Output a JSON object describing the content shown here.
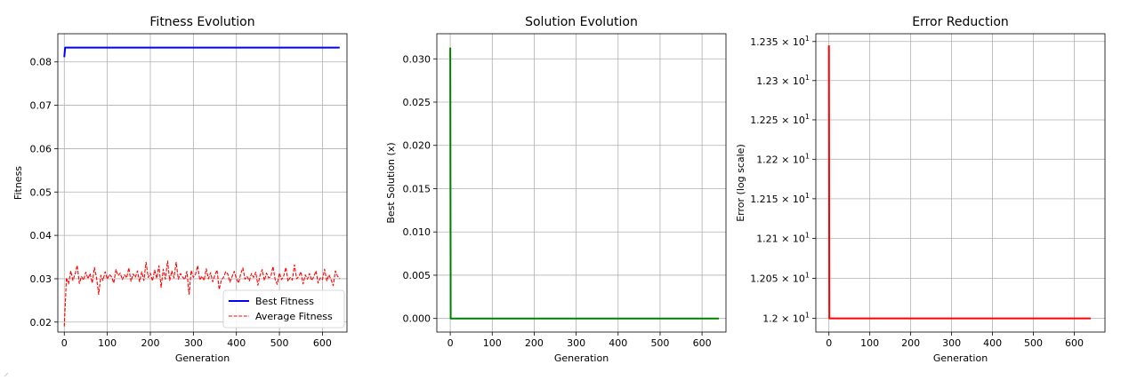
{
  "chart_data": [
    {
      "type": "line",
      "title": "Fitness Evolution",
      "xlabel": "Generation",
      "ylabel": "Fitness",
      "xlim": [
        -15,
        657
      ],
      "ylim": [
        0.0177,
        0.0865
      ],
      "xticks": [
        0,
        100,
        200,
        300,
        400,
        500,
        600
      ],
      "yticks": [
        0.02,
        0.03,
        0.04,
        0.05,
        0.06,
        0.07,
        0.08
      ],
      "ytick_labels": [
        "0.02",
        "0.03",
        "0.04",
        "0.05",
        "0.06",
        "0.07",
        "0.08"
      ],
      "grid": true,
      "legend": "lower-right",
      "series": [
        {
          "name": "Best Fitness",
          "color": "#0000ff",
          "style": "solid",
          "x": [
            0,
            2,
            640
          ],
          "y": [
            0.0811,
            0.0833,
            0.0833
          ]
        },
        {
          "name": "Average Fitness",
          "color": "#ff0000",
          "style": "dashed",
          "x_start": 0,
          "x_step": 5,
          "y": [
            0.019,
            0.0302,
            0.0288,
            0.0318,
            0.0296,
            0.031,
            0.0331,
            0.0289,
            0.0305,
            0.0297,
            0.0315,
            0.03,
            0.0312,
            0.029,
            0.0326,
            0.0302,
            0.0264,
            0.0308,
            0.0296,
            0.0316,
            0.0299,
            0.031,
            0.0304,
            0.029,
            0.0321,
            0.0307,
            0.0313,
            0.0298,
            0.0309,
            0.0302,
            0.0325,
            0.0294,
            0.0311,
            0.0303,
            0.0318,
            0.0293,
            0.0316,
            0.0296,
            0.0338,
            0.0303,
            0.0313,
            0.0295,
            0.032,
            0.0301,
            0.033,
            0.028,
            0.0322,
            0.0299,
            0.0341,
            0.0296,
            0.0318,
            0.0302,
            0.0338,
            0.0299,
            0.0312,
            0.0304,
            0.0298,
            0.0317,
            0.0264,
            0.0319,
            0.0303,
            0.031,
            0.033,
            0.0297,
            0.0306,
            0.0296,
            0.0323,
            0.03,
            0.0314,
            0.0293,
            0.0308,
            0.032,
            0.0275,
            0.0297,
            0.0303,
            0.0316,
            0.0311,
            0.0292,
            0.0305,
            0.0317,
            0.03,
            0.029,
            0.0311,
            0.0325,
            0.0299,
            0.0305,
            0.0295,
            0.0312,
            0.0303,
            0.0315,
            0.0285,
            0.0308,
            0.0321,
            0.0296,
            0.0313,
            0.0302,
            0.0305,
            0.0328,
            0.0299,
            0.0287,
            0.0313,
            0.0298,
            0.0306,
            0.0326,
            0.0294,
            0.0303,
            0.0297,
            0.0332,
            0.03,
            0.0305,
            0.0316,
            0.0288,
            0.0309,
            0.0299,
            0.0312,
            0.0296,
            0.0305,
            0.0318,
            0.029,
            0.0302,
            0.0298,
            0.0322,
            0.0295,
            0.0309,
            0.0298,
            0.0284,
            0.0318,
            0.0306,
            0.03
          ]
        }
      ]
    },
    {
      "type": "line",
      "title": "Solution Evolution",
      "xlabel": "Generation",
      "ylabel": "Best Solution (x)",
      "xlim": [
        -32,
        657
      ],
      "ylim": [
        -0.00157,
        0.0329
      ],
      "xticks": [
        0,
        100,
        200,
        300,
        400,
        500,
        600
      ],
      "yticks": [
        0.0,
        0.005,
        0.01,
        0.015,
        0.02,
        0.025,
        0.03
      ],
      "ytick_labels": [
        "0.000",
        "0.005",
        "0.010",
        "0.015",
        "0.020",
        "0.025",
        "0.030"
      ],
      "grid": true,
      "series": [
        {
          "color": "#008000",
          "style": "solid",
          "x": [
            0,
            1,
            640
          ],
          "y": [
            0.0313,
            0.0,
            0.0
          ]
        }
      ]
    },
    {
      "type": "line",
      "title": "Error Reduction",
      "xlabel": "Generation",
      "ylabel": "Error (log scale)",
      "yscale": "log",
      "xlim": [
        -32,
        675
      ],
      "ylim": [
        11.983,
        12.36
      ],
      "xticks": [
        0,
        100,
        200,
        300,
        400,
        500,
        600
      ],
      "yticks": [
        12.0,
        12.05,
        12.1,
        12.15,
        12.2,
        12.25,
        12.3,
        12.35
      ],
      "ytick_mantissas": [
        "1.2",
        "1.205",
        "1.21",
        "1.215",
        "1.22",
        "1.225",
        "1.23",
        "1.235"
      ],
      "ytick_base": "10",
      "ytick_exp": "1",
      "grid": true,
      "series": [
        {
          "color": "#ff0000",
          "style": "solid",
          "x": [
            0,
            1,
            640
          ],
          "y": [
            12.345,
            12.0,
            12.0
          ]
        }
      ]
    }
  ]
}
